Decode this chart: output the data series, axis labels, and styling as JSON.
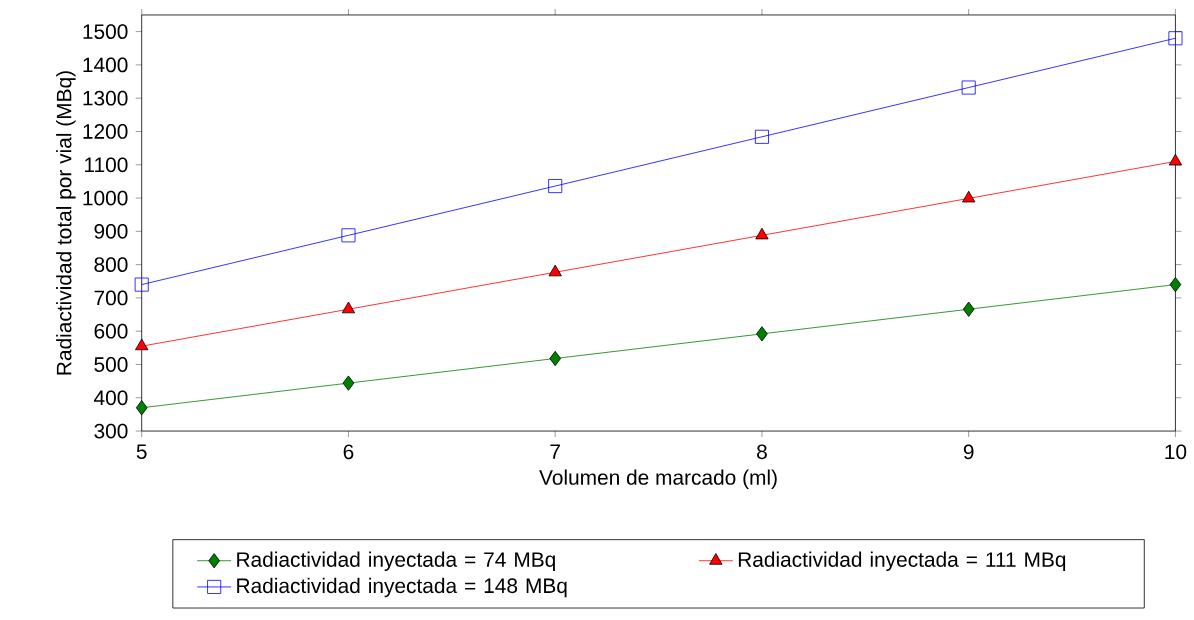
{
  "chart_data": {
    "type": "line",
    "xlabel": "Volumen de marcado (ml)",
    "ylabel": "Radiactividad total por vial (MBq)",
    "x": [
      5,
      6,
      7,
      8,
      9,
      10
    ],
    "series": [
      {
        "name": "Radiactividad inyectada = 74 MBq",
        "color": "#008000",
        "marker": "diamond",
        "values": [
          370,
          444,
          518,
          592,
          666,
          740
        ]
      },
      {
        "name": "Radiactividad inyectada = 111 MBq",
        "color": "#ff0000",
        "marker": "triangle",
        "values": [
          555,
          666,
          777,
          888,
          999,
          1110
        ]
      },
      {
        "name": "Radiactividad inyectada = 148 MBq",
        "color": "#0000ff",
        "marker": "square",
        "values": [
          740,
          888,
          1036,
          1184,
          1332,
          1480
        ]
      }
    ],
    "xlim": [
      5,
      10
    ],
    "ylim": [
      300,
      1550
    ],
    "xticks": [
      5,
      6,
      7,
      8,
      9,
      10
    ],
    "yticks": [
      300,
      400,
      500,
      600,
      700,
      800,
      900,
      1000,
      1100,
      1200,
      1300,
      1400,
      1500
    ],
    "grid": false,
    "legend": "bottom",
    "line_style": "solid"
  }
}
